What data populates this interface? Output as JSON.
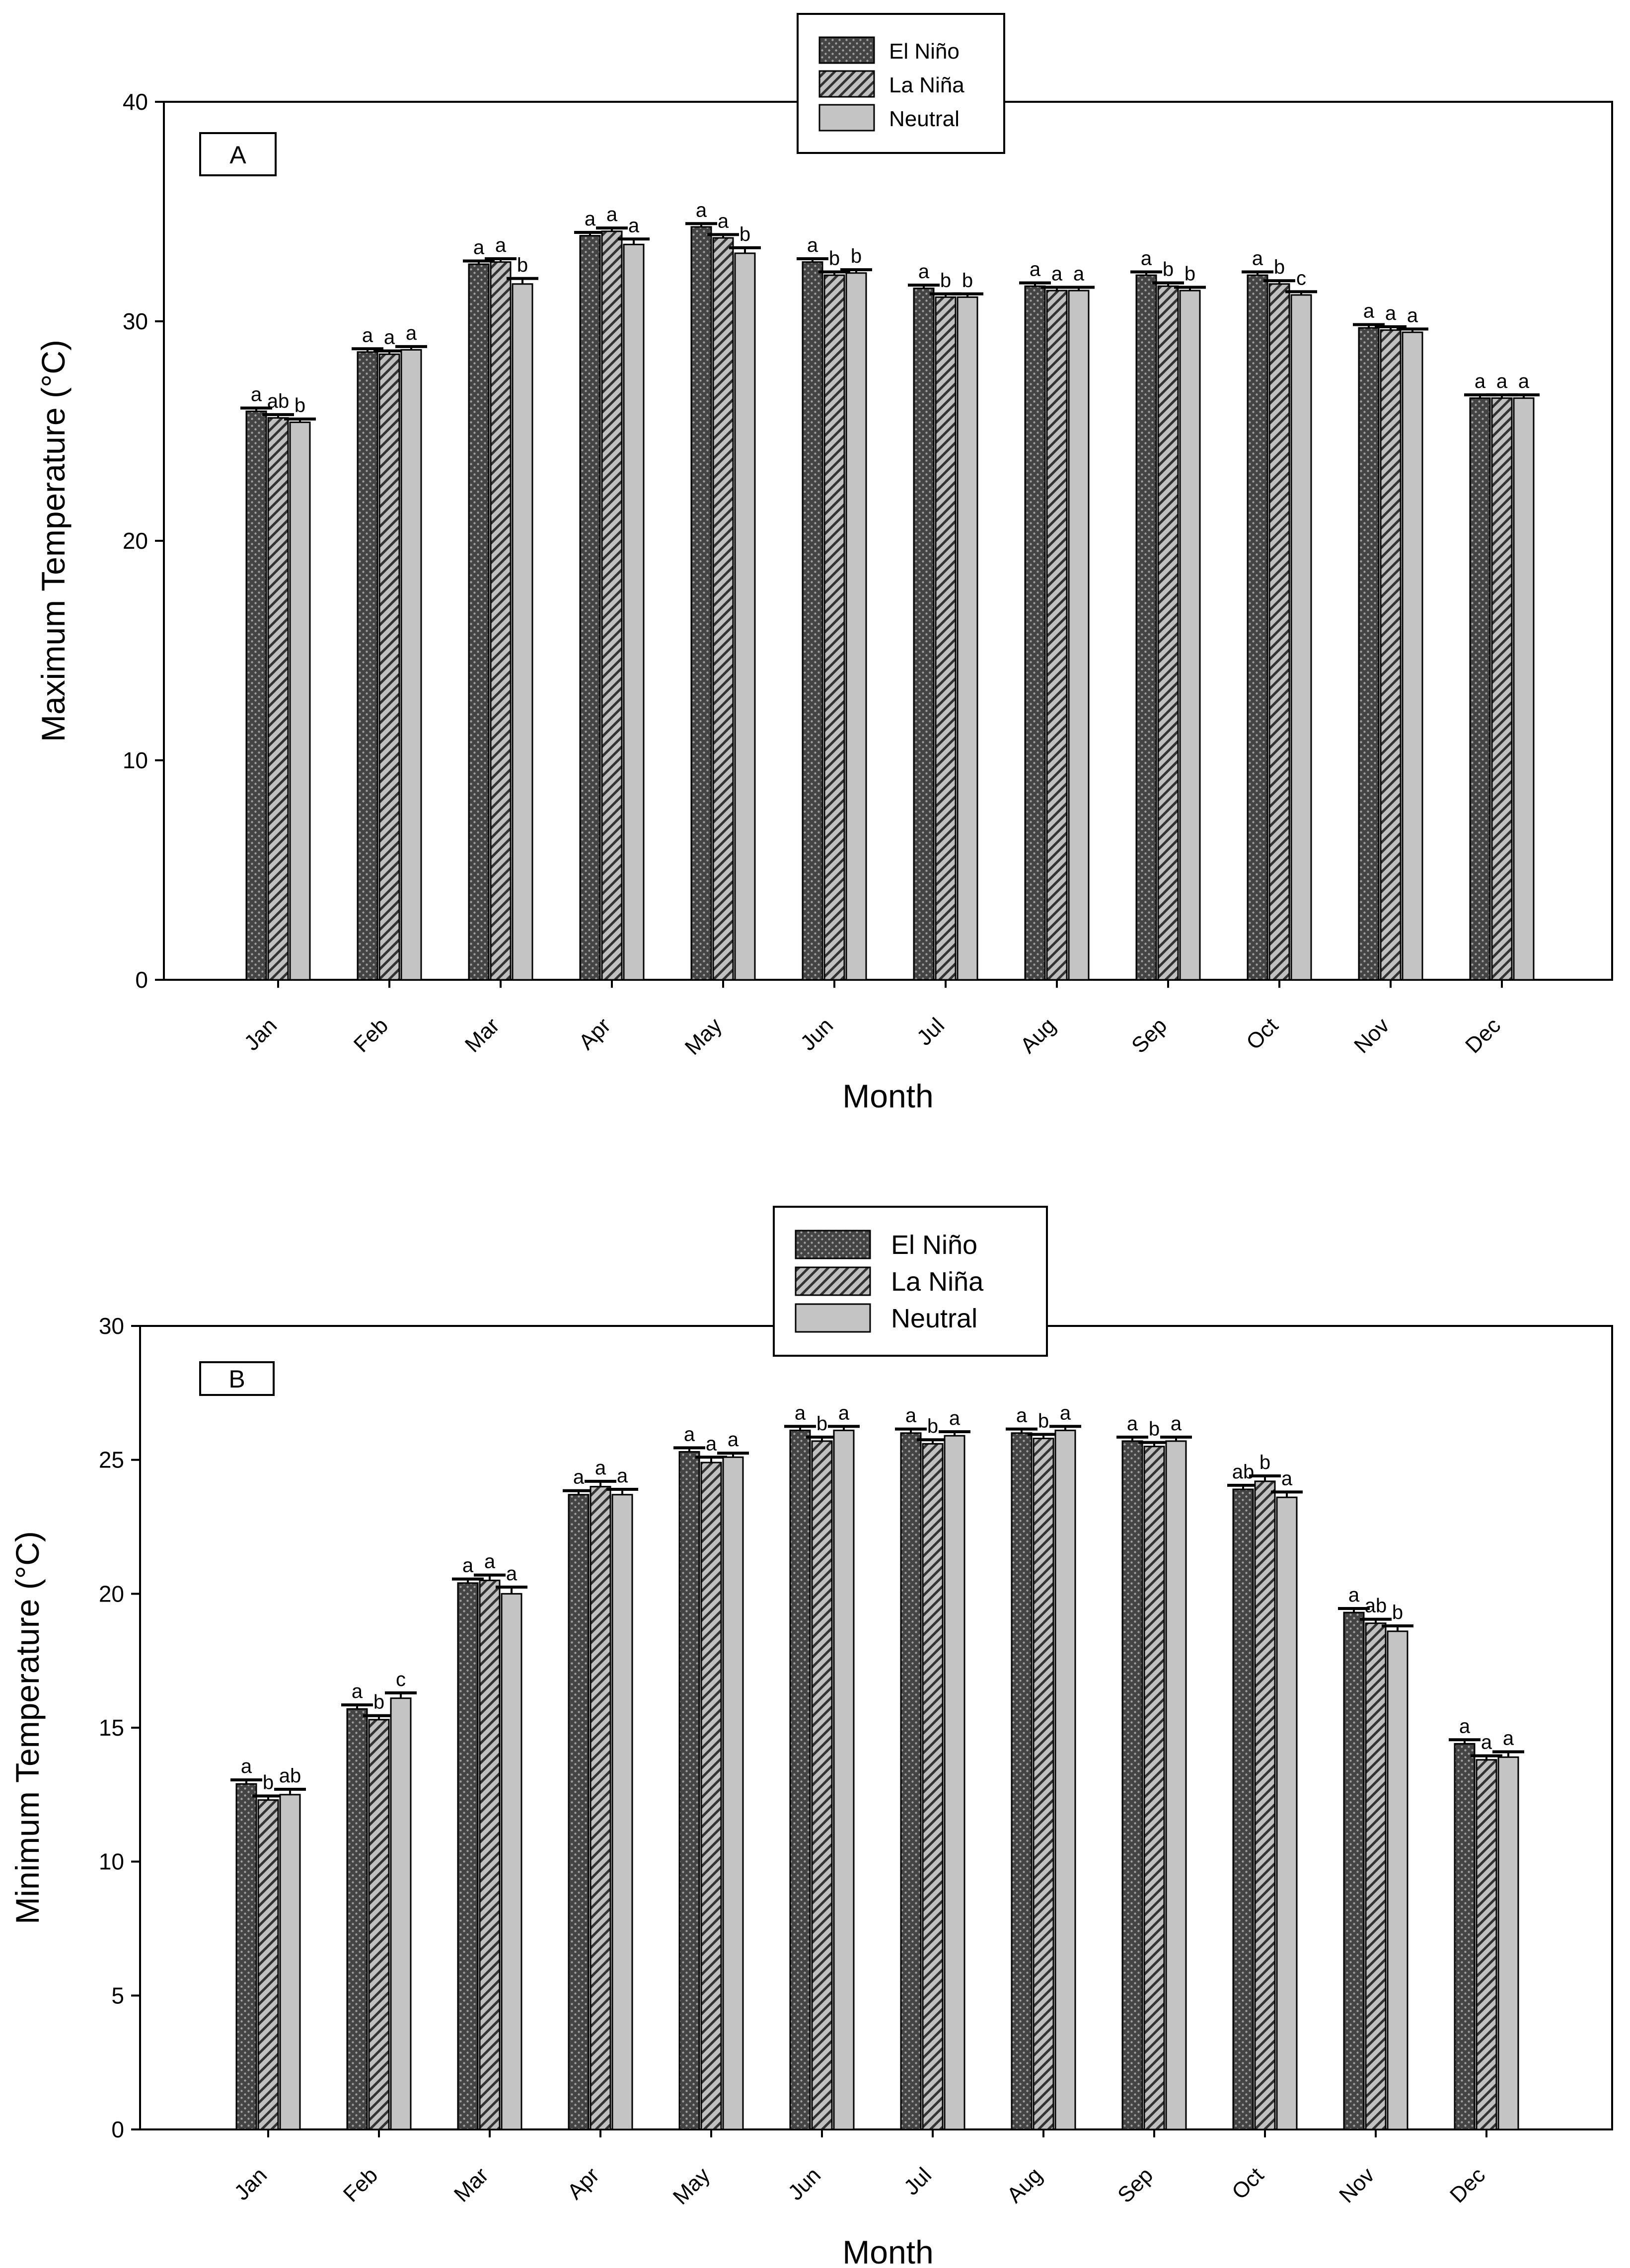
{
  "legend_entries": [
    "El Niño",
    "La Niña",
    "Neutral"
  ],
  "colors": {
    "el_nino_fill": "#444444",
    "el_nino_dots": "#9a9a9a",
    "la_nina_fill": "#bdbdbd",
    "la_nina_hatch": "#333333",
    "neutral_fill": "#c4c4c4",
    "axis": "#000000"
  },
  "chart_data": [
    {
      "type": "bar",
      "panel": "A",
      "title": "",
      "xlabel": "Month",
      "ylabel": "Maximum Temperature (°C)",
      "ylim": [
        0,
        40
      ],
      "yticks": [
        0,
        10,
        20,
        30,
        40
      ],
      "categories": [
        "Jan",
        "Feb",
        "Mar",
        "Apr",
        "May",
        "Jun",
        "Jul",
        "Aug",
        "Sep",
        "Oct",
        "Nov",
        "Dec"
      ],
      "series": [
        {
          "name": "El Niño",
          "values": [
            25.9,
            28.6,
            32.6,
            33.9,
            34.3,
            32.7,
            31.5,
            31.6,
            32.1,
            32.1,
            29.7,
            26.5
          ],
          "errors": [
            0.15,
            0.15,
            0.15,
            0.15,
            0.15,
            0.15,
            0.15,
            0.15,
            0.15,
            0.15,
            0.15,
            0.15
          ],
          "letters": [
            "a",
            "a",
            "a",
            "a",
            "a",
            "a",
            "a",
            "a",
            "a",
            "a",
            "a",
            "a"
          ]
        },
        {
          "name": "La Niña",
          "values": [
            25.6,
            28.5,
            32.7,
            34.1,
            33.8,
            32.1,
            31.1,
            31.4,
            31.6,
            31.7,
            29.6,
            26.5
          ],
          "errors": [
            0.15,
            0.15,
            0.15,
            0.15,
            0.15,
            0.15,
            0.15,
            0.15,
            0.15,
            0.15,
            0.15,
            0.15
          ],
          "letters": [
            "ab",
            "a",
            "a",
            "a",
            "a",
            "b",
            "b",
            "a",
            "b",
            "b",
            "a",
            "a"
          ]
        },
        {
          "name": "Neutral",
          "values": [
            25.4,
            28.7,
            31.7,
            33.5,
            33.1,
            32.2,
            31.1,
            31.4,
            31.4,
            31.2,
            29.5,
            26.5
          ],
          "errors": [
            0.15,
            0.15,
            0.25,
            0.25,
            0.25,
            0.15,
            0.15,
            0.15,
            0.15,
            0.15,
            0.15,
            0.15
          ],
          "letters": [
            "b",
            "a",
            "b",
            "a",
            "b",
            "b",
            "b",
            "a",
            "b",
            "c",
            "a",
            "a"
          ]
        }
      ]
    },
    {
      "type": "bar",
      "panel": "B",
      "title": "",
      "xlabel": "Month",
      "ylabel": "Minimum Temperature (°C)",
      "ylim": [
        0,
        30
      ],
      "yticks": [
        0,
        5,
        10,
        15,
        20,
        25,
        30
      ],
      "categories": [
        "Jan",
        "Feb",
        "Mar",
        "Apr",
        "May",
        "Jun",
        "Jul",
        "Aug",
        "Sep",
        "Oct",
        "Nov",
        "Dec"
      ],
      "series": [
        {
          "name": "El Niño",
          "values": [
            12.9,
            15.7,
            20.4,
            23.7,
            25.3,
            26.1,
            26.0,
            26.0,
            25.7,
            23.9,
            19.3,
            14.4
          ],
          "errors": [
            0.15,
            0.15,
            0.15,
            0.15,
            0.15,
            0.15,
            0.15,
            0.15,
            0.15,
            0.15,
            0.15,
            0.15
          ],
          "letters": [
            "a",
            "a",
            "a",
            "a",
            "a",
            "a",
            "a",
            "a",
            "a",
            "ab",
            "a",
            "a"
          ]
        },
        {
          "name": "La Niña",
          "values": [
            12.3,
            15.3,
            20.5,
            24.0,
            24.9,
            25.7,
            25.6,
            25.8,
            25.5,
            24.2,
            18.9,
            13.8
          ],
          "errors": [
            0.15,
            0.15,
            0.2,
            0.2,
            0.2,
            0.15,
            0.15,
            0.15,
            0.15,
            0.2,
            0.15,
            0.15
          ],
          "letters": [
            "b",
            "b",
            "a",
            "a",
            "a",
            "b",
            "b",
            "b",
            "b",
            "b",
            "ab",
            "a"
          ]
        },
        {
          "name": "Neutral",
          "values": [
            12.5,
            16.1,
            20.0,
            23.7,
            25.1,
            26.1,
            25.9,
            26.1,
            25.7,
            23.6,
            18.6,
            13.9
          ],
          "errors": [
            0.2,
            0.2,
            0.25,
            0.2,
            0.15,
            0.15,
            0.15,
            0.15,
            0.15,
            0.2,
            0.2,
            0.2
          ],
          "letters": [
            "ab",
            "c",
            "a",
            "a",
            "a",
            "a",
            "a",
            "a",
            "a",
            "a",
            "b",
            "a"
          ]
        }
      ]
    }
  ]
}
